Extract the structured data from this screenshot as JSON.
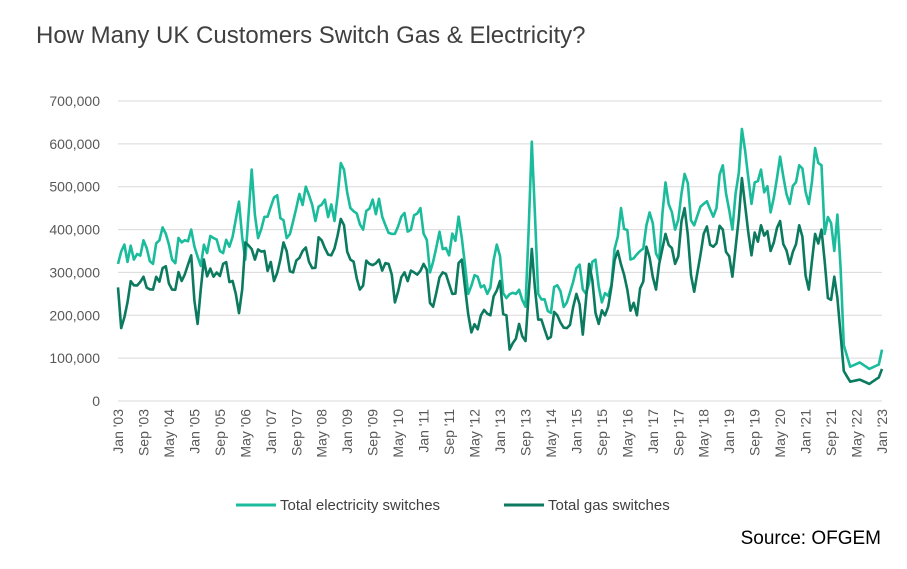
{
  "chart_data": {
    "type": "line",
    "title": "How Many UK Customers Switch Gas & Electricity?",
    "source": "Source: OFGEM",
    "ylim": [
      0,
      700000
    ],
    "y_ticks": [
      "0",
      "100,000",
      "200,000",
      "300,000",
      "400,000",
      "500,000",
      "600,000",
      "700,000"
    ],
    "x_ticks": [
      "Jan '03",
      "Sep '03",
      "May '04",
      "Jan '05",
      "Sep '05",
      "May '06",
      "Jan '07",
      "Sep '07",
      "May '08",
      "Jan '09",
      "Sep '09",
      "May '10",
      "Jan '11",
      "Sep '11",
      "May '12",
      "Jan '13",
      "Sep '13",
      "May '14",
      "Jan '15",
      "Sep '15",
      "May '16",
      "Jan '17",
      "Sep '17",
      "May '18",
      "Jan '19",
      "Sep '19",
      "May '20",
      "Jan '21",
      "Sep '21",
      "May '22",
      "Jan '23"
    ],
    "grid": "horizontal",
    "legend": "bottom",
    "series": [
      {
        "name": "Total electricity switches",
        "color": "#1abc9c",
        "anchors": [
          [
            "2003-01",
            320000
          ],
          [
            "2003-03",
            365000
          ],
          [
            "2003-06",
            330000
          ],
          [
            "2003-09",
            375000
          ],
          [
            "2003-12",
            320000
          ],
          [
            "2004-03",
            405000
          ],
          [
            "2004-06",
            330000
          ],
          [
            "2004-09",
            370000
          ],
          [
            "2004-12",
            400000
          ],
          [
            "2005-03",
            315000
          ],
          [
            "2005-06",
            385000
          ],
          [
            "2005-09",
            350000
          ],
          [
            "2005-12",
            360000
          ],
          [
            "2006-03",
            465000
          ],
          [
            "2006-05",
            330000
          ],
          [
            "2006-07",
            540000
          ],
          [
            "2006-09",
            380000
          ],
          [
            "2006-12",
            430000
          ],
          [
            "2007-03",
            480000
          ],
          [
            "2007-06",
            380000
          ],
          [
            "2007-09",
            450000
          ],
          [
            "2007-12",
            500000
          ],
          [
            "2008-03",
            420000
          ],
          [
            "2008-06",
            470000
          ],
          [
            "2008-09",
            420000
          ],
          [
            "2008-11",
            555000
          ],
          [
            "2009-02",
            450000
          ],
          [
            "2009-06",
            400000
          ],
          [
            "2009-09",
            470000
          ],
          [
            "2009-12",
            430000
          ],
          [
            "2010-03",
            390000
          ],
          [
            "2010-06",
            430000
          ],
          [
            "2010-09",
            400000
          ],
          [
            "2010-12",
            450000
          ],
          [
            "2011-03",
            300000
          ],
          [
            "2011-06",
            395000
          ],
          [
            "2011-09",
            340000
          ],
          [
            "2011-12",
            430000
          ],
          [
            "2012-03",
            250000
          ],
          [
            "2012-06",
            290000
          ],
          [
            "2012-09",
            250000
          ],
          [
            "2012-12",
            365000
          ],
          [
            "2013-03",
            240000
          ],
          [
            "2013-06",
            250000
          ],
          [
            "2013-09",
            220000
          ],
          [
            "2013-11",
            605000
          ],
          [
            "2014-01",
            250000
          ],
          [
            "2014-04",
            210000
          ],
          [
            "2014-07",
            270000
          ],
          [
            "2014-10",
            230000
          ],
          [
            "2015-01",
            310000
          ],
          [
            "2015-04",
            250000
          ],
          [
            "2015-07",
            330000
          ],
          [
            "2015-09",
            230000
          ],
          [
            "2015-12",
            270000
          ],
          [
            "2016-03",
            450000
          ],
          [
            "2016-06",
            330000
          ],
          [
            "2016-09",
            350000
          ],
          [
            "2016-12",
            440000
          ],
          [
            "2017-03",
            330000
          ],
          [
            "2017-05",
            510000
          ],
          [
            "2017-08",
            400000
          ],
          [
            "2017-11",
            530000
          ],
          [
            "2018-02",
            410000
          ],
          [
            "2018-05",
            460000
          ],
          [
            "2018-08",
            430000
          ],
          [
            "2018-11",
            550000
          ],
          [
            "2019-02",
            400000
          ],
          [
            "2019-05",
            635000
          ],
          [
            "2019-08",
            460000
          ],
          [
            "2019-11",
            540000
          ],
          [
            "2020-02",
            440000
          ],
          [
            "2020-05",
            570000
          ],
          [
            "2020-08",
            460000
          ],
          [
            "2020-11",
            550000
          ],
          [
            "2021-02",
            460000
          ],
          [
            "2021-04",
            590000
          ],
          [
            "2021-06",
            550000
          ],
          [
            "2021-07",
            390000
          ],
          [
            "2021-09",
            415000
          ],
          [
            "2021-10",
            350000
          ],
          [
            "2021-11",
            435000
          ],
          [
            "2021-12",
            310000
          ],
          [
            "2022-01",
            130000
          ],
          [
            "2022-03",
            80000
          ],
          [
            "2022-06",
            90000
          ],
          [
            "2022-09",
            75000
          ],
          [
            "2022-12",
            85000
          ],
          [
            "2023-01",
            120000
          ]
        ]
      },
      {
        "name": "Total gas switches",
        "color": "#0b7a5f",
        "anchors": [
          [
            "2003-01",
            265000
          ],
          [
            "2003-02",
            170000
          ],
          [
            "2003-04",
            230000
          ],
          [
            "2003-06",
            270000
          ],
          [
            "2003-09",
            290000
          ],
          [
            "2003-12",
            260000
          ],
          [
            "2004-03",
            310000
          ],
          [
            "2004-06",
            260000
          ],
          [
            "2004-09",
            280000
          ],
          [
            "2004-12",
            340000
          ],
          [
            "2005-02",
            180000
          ],
          [
            "2005-04",
            330000
          ],
          [
            "2005-07",
            290000
          ],
          [
            "2005-10",
            320000
          ],
          [
            "2006-01",
            280000
          ],
          [
            "2006-03",
            205000
          ],
          [
            "2006-05",
            370000
          ],
          [
            "2006-08",
            330000
          ],
          [
            "2006-11",
            350000
          ],
          [
            "2007-02",
            280000
          ],
          [
            "2007-05",
            370000
          ],
          [
            "2007-08",
            300000
          ],
          [
            "2007-11",
            350000
          ],
          [
            "2008-02",
            310000
          ],
          [
            "2008-05",
            375000
          ],
          [
            "2008-08",
            340000
          ],
          [
            "2008-11",
            425000
          ],
          [
            "2009-02",
            330000
          ],
          [
            "2009-05",
            260000
          ],
          [
            "2009-08",
            320000
          ],
          [
            "2009-11",
            330000
          ],
          [
            "2010-02",
            320000
          ],
          [
            "2010-04",
            230000
          ],
          [
            "2010-07",
            300000
          ],
          [
            "2010-10",
            300000
          ],
          [
            "2011-01",
            320000
          ],
          [
            "2011-04",
            220000
          ],
          [
            "2011-07",
            300000
          ],
          [
            "2011-10",
            250000
          ],
          [
            "2012-01",
            330000
          ],
          [
            "2012-04",
            160000
          ],
          [
            "2012-07",
            200000
          ],
          [
            "2012-10",
            200000
          ],
          [
            "2013-01",
            280000
          ],
          [
            "2013-04",
            120000
          ],
          [
            "2013-07",
            180000
          ],
          [
            "2013-09",
            140000
          ],
          [
            "2013-11",
            355000
          ],
          [
            "2014-01",
            190000
          ],
          [
            "2014-04",
            145000
          ],
          [
            "2014-07",
            200000
          ],
          [
            "2014-10",
            170000
          ],
          [
            "2015-01",
            250000
          ],
          [
            "2015-03",
            155000
          ],
          [
            "2015-05",
            320000
          ],
          [
            "2015-08",
            180000
          ],
          [
            "2015-11",
            220000
          ],
          [
            "2016-02",
            350000
          ],
          [
            "2016-05",
            260000
          ],
          [
            "2016-08",
            200000
          ],
          [
            "2016-11",
            360000
          ],
          [
            "2017-02",
            260000
          ],
          [
            "2017-05",
            390000
          ],
          [
            "2017-08",
            320000
          ],
          [
            "2017-11",
            450000
          ],
          [
            "2018-02",
            255000
          ],
          [
            "2018-05",
            390000
          ],
          [
            "2018-08",
            360000
          ],
          [
            "2018-11",
            400000
          ],
          [
            "2019-02",
            290000
          ],
          [
            "2019-05",
            520000
          ],
          [
            "2019-08",
            340000
          ],
          [
            "2019-11",
            410000
          ],
          [
            "2020-02",
            350000
          ],
          [
            "2020-05",
            420000
          ],
          [
            "2020-08",
            320000
          ],
          [
            "2020-11",
            410000
          ],
          [
            "2021-02",
            260000
          ],
          [
            "2021-04",
            390000
          ],
          [
            "2021-06",
            400000
          ],
          [
            "2021-08",
            240000
          ],
          [
            "2021-10",
            290000
          ],
          [
            "2021-11",
            240000
          ],
          [
            "2022-01",
            70000
          ],
          [
            "2022-03",
            45000
          ],
          [
            "2022-06",
            50000
          ],
          [
            "2022-09",
            40000
          ],
          [
            "2022-12",
            55000
          ],
          [
            "2023-01",
            75000
          ]
        ]
      }
    ]
  }
}
